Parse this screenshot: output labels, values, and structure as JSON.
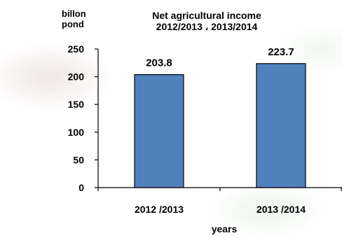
{
  "chart_data": {
    "type": "bar",
    "title": "Net agricultural income",
    "subtitle": "2012/2013 ، 2013/2014",
    "ylabel": "billon\npond",
    "xlabel": "years",
    "categories": [
      "2012 /2013",
      "2013 /2014"
    ],
    "values": [
      203.8,
      223.7
    ],
    "data_labels": [
      "203.8",
      "223.7"
    ],
    "ylim": [
      0,
      250
    ],
    "yticks": [
      "0",
      "50",
      "100",
      "150",
      "200",
      "250"
    ],
    "grid": false,
    "legend": "none",
    "bar_color": "#4f81bd",
    "bar_edge_color": "#000000"
  }
}
